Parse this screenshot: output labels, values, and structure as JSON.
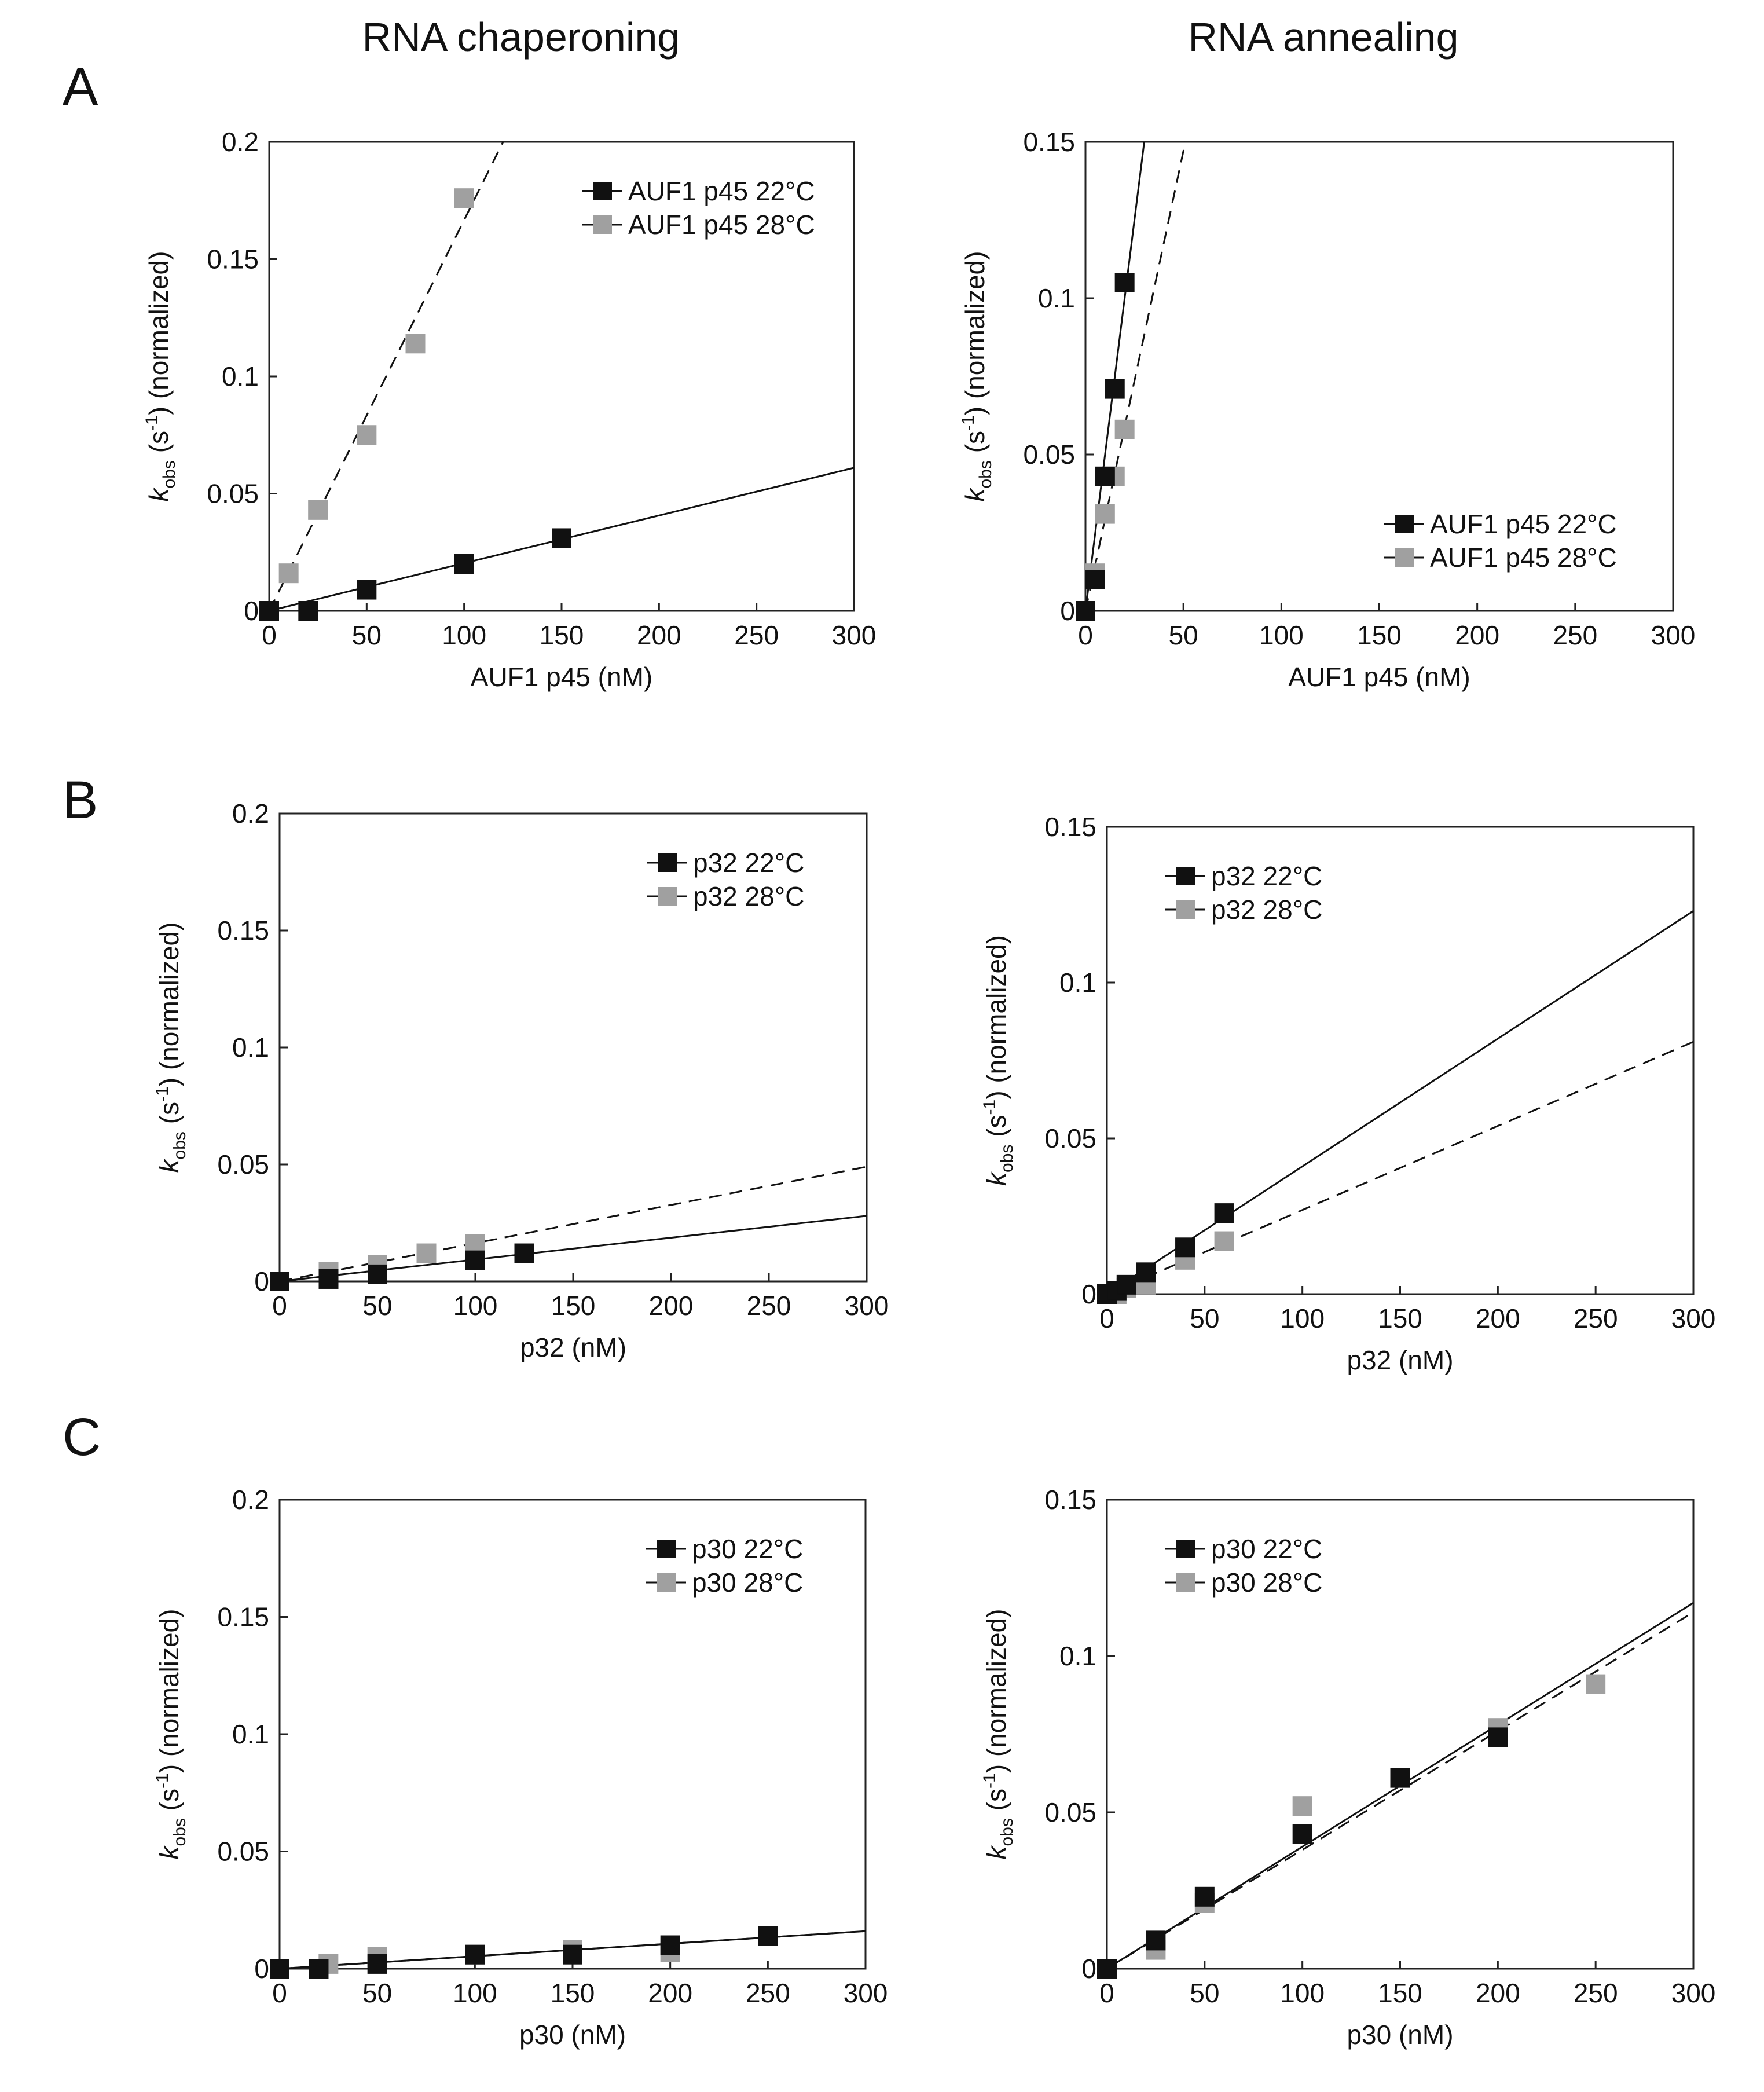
{
  "column_titles": [
    "RNA chaperoning",
    "RNA annealing"
  ],
  "row_labels": [
    "A",
    "B",
    "C"
  ],
  "colors": {
    "series_22": "#111111",
    "series_28": "#a0a0a0",
    "axis": "#222222"
  },
  "chart_data": [
    {
      "id": "A-chaperoning",
      "type": "scatter",
      "xlabel": "AUF1 p45 (nM)",
      "ylabel": "k obs (s-1) (normalized)",
      "ylabel_parts": {
        "k": "k",
        "sub": "obs",
        "mid": " (s",
        "sup": "-1",
        "end": ") (normalized)"
      },
      "xlim": [
        0,
        300
      ],
      "ylim": [
        0,
        0.2
      ],
      "xticks": [
        0,
        50,
        100,
        150,
        200,
        250,
        300
      ],
      "yticks": [
        0,
        0.05,
        0.1,
        0.15,
        0.2
      ],
      "ytick_labels": [
        "0",
        "0.05",
        "0.1",
        "0.15",
        "0.2"
      ],
      "legend": "top-right",
      "series": [
        {
          "name": "AUF1 p45 22°C",
          "points": [
            [
              0,
              0
            ],
            [
              20,
              0
            ],
            [
              50,
              0.009
            ],
            [
              100,
              0.02
            ],
            [
              150,
              0.031
            ]
          ],
          "fit": [
            [
              0,
              0
            ],
            [
              300,
              0.061
            ]
          ],
          "dashed": false
        },
        {
          "name": "AUF1 p45 28°C",
          "points": [
            [
              0,
              0
            ],
            [
              10,
              0.016
            ],
            [
              25,
              0.043
            ],
            [
              50,
              0.075
            ],
            [
              75,
              0.114
            ],
            [
              100,
              0.176
            ]
          ],
          "fit": [
            [
              0,
              0
            ],
            [
              120,
              0.2
            ]
          ],
          "dashed": true
        }
      ]
    },
    {
      "id": "A-annealing",
      "type": "scatter",
      "xlabel": "AUF1 p45 (nM)",
      "ylabel": "k obs (s-1) (normalized)",
      "ylabel_parts": {
        "k": "k",
        "sub": "obs",
        "mid": " (s",
        "sup": "-1",
        "end": ") (normalized)"
      },
      "xlim": [
        0,
        300
      ],
      "ylim": [
        0,
        0.15
      ],
      "xticks": [
        0,
        50,
        100,
        150,
        200,
        250,
        300
      ],
      "yticks": [
        0,
        0.05,
        0.1,
        0.15
      ],
      "ytick_labels": [
        "0",
        "0.05",
        "0.1",
        "0.15"
      ],
      "legend": "bottom-right",
      "series": [
        {
          "name": "AUF1 p45 22°C",
          "points": [
            [
              0,
              0
            ],
            [
              5,
              0.01
            ],
            [
              10,
              0.043
            ],
            [
              15,
              0.071
            ],
            [
              20,
              0.105
            ]
          ],
          "fit": [
            [
              0,
              0
            ],
            [
              30,
              0.15
            ]
          ],
          "dashed": false
        },
        {
          "name": "AUF1 p45 28°C",
          "points": [
            [
              0,
              0
            ],
            [
              5,
              0.012
            ],
            [
              10,
              0.031
            ],
            [
              15,
              0.043
            ],
            [
              20,
              0.058
            ]
          ],
          "fit": [
            [
              0,
              0
            ],
            [
              51,
              0.15
            ]
          ],
          "dashed": true
        }
      ]
    },
    {
      "id": "B-chaperoning",
      "type": "scatter",
      "xlabel": "p32 (nM)",
      "ylabel": "k obs (s-1) (normalized)",
      "ylabel_parts": {
        "k": "k",
        "sub": "obs",
        "mid": " (s",
        "sup": "-1",
        "end": ") (normalized)"
      },
      "xlim": [
        0,
        300
      ],
      "ylim": [
        0,
        0.2
      ],
      "xticks": [
        0,
        50,
        100,
        150,
        200,
        250,
        300
      ],
      "yticks": [
        0,
        0.05,
        0.1,
        0.15,
        0.2
      ],
      "ytick_labels": [
        "0",
        "0.05",
        "0.1",
        "0.15",
        "0.2"
      ],
      "legend": "top-right",
      "series": [
        {
          "name": "p32 22°C",
          "points": [
            [
              0,
              0
            ],
            [
              25,
              0.001
            ],
            [
              50,
              0.003
            ],
            [
              100,
              0.009
            ],
            [
              125,
              0.012
            ]
          ],
          "fit": [
            [
              0,
              0
            ],
            [
              300,
              0.028
            ]
          ],
          "dashed": false
        },
        {
          "name": "p32 28°C",
          "points": [
            [
              0,
              0
            ],
            [
              25,
              0.004
            ],
            [
              50,
              0.007
            ],
            [
              75,
              0.012
            ],
            [
              100,
              0.016
            ]
          ],
          "fit": [
            [
              0,
              0
            ],
            [
              300,
              0.049
            ]
          ],
          "dashed": true
        }
      ]
    },
    {
      "id": "B-annealing",
      "type": "scatter",
      "xlabel": "p32 (nM)",
      "ylabel": "k obs (s-1) (normalized)",
      "ylabel_parts": {
        "k": "k",
        "sub": "obs",
        "mid": " (s",
        "sup": "-1",
        "end": ") (normalized)"
      },
      "xlim": [
        0,
        300
      ],
      "ylim": [
        0,
        0.15
      ],
      "xticks": [
        0,
        50,
        100,
        150,
        200,
        250,
        300
      ],
      "yticks": [
        0,
        0.05,
        0.1,
        0.15
      ],
      "ytick_labels": [
        "0",
        "0.05",
        "0.1",
        "0.15"
      ],
      "legend": "top-left",
      "series": [
        {
          "name": "p32 22°C",
          "points": [
            [
              0,
              0
            ],
            [
              5,
              0.001
            ],
            [
              10,
              0.003
            ],
            [
              20,
              0.007
            ],
            [
              40,
              0.015
            ],
            [
              60,
              0.026
            ]
          ],
          "fit": [
            [
              0,
              0
            ],
            [
              300,
              0.123
            ]
          ],
          "dashed": false
        },
        {
          "name": "p32 28°C",
          "points": [
            [
              0,
              0
            ],
            [
              5,
              0.0
            ],
            [
              10,
              0.002
            ],
            [
              20,
              0.003
            ],
            [
              40,
              0.011
            ],
            [
              60,
              0.017
            ]
          ],
          "fit": [
            [
              0,
              0
            ],
            [
              300,
              0.081
            ]
          ],
          "dashed": true
        }
      ]
    },
    {
      "id": "C-chaperoning",
      "type": "scatter",
      "xlabel": "p30 (nM)",
      "ylabel": "k obs (s-1) (normalized)",
      "ylabel_parts": {
        "k": "k",
        "sub": "obs",
        "mid": " (s",
        "sup": "-1",
        "end": ") (normalized)"
      },
      "xlim": [
        0,
        300
      ],
      "ylim": [
        0,
        0.2
      ],
      "xticks": [
        0,
        50,
        100,
        150,
        200,
        250,
        300
      ],
      "yticks": [
        0,
        0.05,
        0.1,
        0.15,
        0.2
      ],
      "ytick_labels": [
        "0",
        "0.05",
        "0.1",
        "0.15",
        "0.2"
      ],
      "legend": "top-right",
      "series": [
        {
          "name": "p30 22°C",
          "points": [
            [
              0,
              0
            ],
            [
              20,
              0
            ],
            [
              50,
              0.002
            ],
            [
              100,
              0.006
            ],
            [
              150,
              0.006
            ],
            [
              200,
              0.01
            ],
            [
              250,
              0.014
            ]
          ],
          "fit": [
            [
              0,
              0
            ],
            [
              300,
              0.016
            ]
          ],
          "dashed": false
        },
        {
          "name": "p30 28°C",
          "points": [
            [
              0,
              0
            ],
            [
              25,
              0.002
            ],
            [
              50,
              0.005
            ],
            [
              100,
              0.006
            ],
            [
              150,
              0.008
            ],
            [
              200,
              0.007
            ],
            [
              250,
              0.014
            ]
          ],
          "fit": [
            [
              0,
              0
            ],
            [
              300,
              0.016
            ]
          ],
          "dashed": true
        }
      ]
    },
    {
      "id": "C-annealing",
      "type": "scatter",
      "xlabel": "p30 (nM)",
      "ylabel": "k obs (s-1) (normalized)",
      "ylabel_parts": {
        "k": "k",
        "sub": "obs",
        "mid": " (s",
        "sup": "-1",
        "end": ") (normalized)"
      },
      "xlim": [
        0,
        300
      ],
      "ylim": [
        0,
        0.15
      ],
      "xticks": [
        0,
        50,
        100,
        150,
        200,
        250,
        300
      ],
      "yticks": [
        0,
        0.05,
        0.1,
        0.15
      ],
      "ytick_labels": [
        "0",
        "0.05",
        "0.1",
        "0.15"
      ],
      "legend": "top-left",
      "series": [
        {
          "name": "p30 22°C",
          "points": [
            [
              0,
              0
            ],
            [
              25,
              0.009
            ],
            [
              50,
              0.023
            ],
            [
              100,
              0.043
            ],
            [
              150,
              0.061
            ],
            [
              200,
              0.074
            ]
          ],
          "fit": [
            [
              0,
              0
            ],
            [
              300,
              0.117
            ]
          ],
          "dashed": false
        },
        {
          "name": "p30 28°C",
          "points": [
            [
              0,
              0
            ],
            [
              25,
              0.006
            ],
            [
              50,
              0.021
            ],
            [
              100,
              0.052
            ],
            [
              150,
              0.061
            ],
            [
              200,
              0.077
            ],
            [
              250,
              0.091
            ]
          ],
          "fit": [
            [
              0,
              0
            ],
            [
              300,
              0.114
            ]
          ],
          "dashed": true
        }
      ]
    }
  ]
}
